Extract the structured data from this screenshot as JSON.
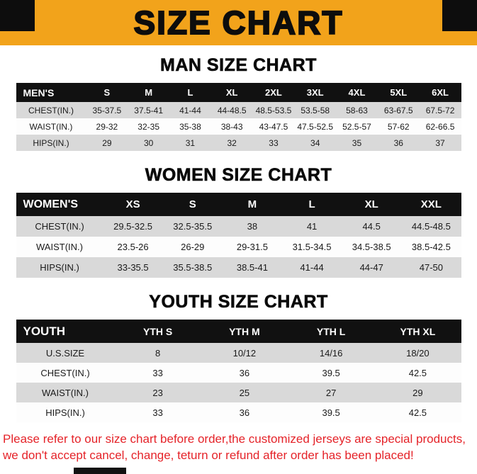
{
  "banner": {
    "title": "SIZE CHART"
  },
  "colors": {
    "banner_bg": "#F2A31B",
    "table_header_bg": "#111111",
    "row_stripe": "#D9D9D9",
    "footer_text": "#E52329"
  },
  "chart_data": [
    {
      "type": "table",
      "title": "MAN SIZE CHART",
      "columns": [
        "MEN'S",
        "S",
        "M",
        "L",
        "XL",
        "2XL",
        "3XL",
        "4XL",
        "5XL",
        "6XL"
      ],
      "rows": [
        [
          "CHEST(IN.)",
          "35-37.5",
          "37.5-41",
          "41-44",
          "44-48.5",
          "48.5-53.5",
          "53.5-58",
          "58-63",
          "63-67.5",
          "67.5-72"
        ],
        [
          "WAIST(IN.)",
          "29-32",
          "32-35",
          "35-38",
          "38-43",
          "43-47.5",
          "47.5-52.5",
          "52.5-57",
          "57-62",
          "62-66.5"
        ],
        [
          "HIPS(IN.)",
          "29",
          "30",
          "31",
          "32",
          "33",
          "34",
          "35",
          "36",
          "37"
        ]
      ]
    },
    {
      "type": "table",
      "title": "WOMEN SIZE CHART",
      "columns": [
        "WOMEN'S",
        "XS",
        "S",
        "M",
        "L",
        "XL",
        "XXL"
      ],
      "rows": [
        [
          "CHEST(IN.)",
          "29.5-32.5",
          "32.5-35.5",
          "38",
          "41",
          "44.5",
          "44.5-48.5"
        ],
        [
          "WAIST(IN.)",
          "23.5-26",
          "26-29",
          "29-31.5",
          "31.5-34.5",
          "34.5-38.5",
          "38.5-42.5"
        ],
        [
          "HIPS(IN.)",
          "33-35.5",
          "35.5-38.5",
          "38.5-41",
          "41-44",
          "44-47",
          "47-50"
        ]
      ]
    },
    {
      "type": "table",
      "title": "YOUTH SIZE CHART",
      "columns": [
        "YOUTH",
        "YTH S",
        "YTH M",
        "YTH L",
        "YTH XL"
      ],
      "rows": [
        [
          "U.S.SIZE",
          "8",
          "10/12",
          "14/16",
          "18/20"
        ],
        [
          "CHEST(IN.)",
          "33",
          "36",
          "39.5",
          "42.5"
        ],
        [
          "WAIST(IN.)",
          "23",
          "25",
          "27",
          "29"
        ],
        [
          "HIPS(IN.)",
          "33",
          "36",
          "39.5",
          "42.5"
        ]
      ]
    }
  ],
  "footer": {
    "line1": "Please refer to our size chart before order,the customized jerseys are special products,",
    "line2": "we don't accept cancel, change, teturn or refund after order has been placed!"
  }
}
